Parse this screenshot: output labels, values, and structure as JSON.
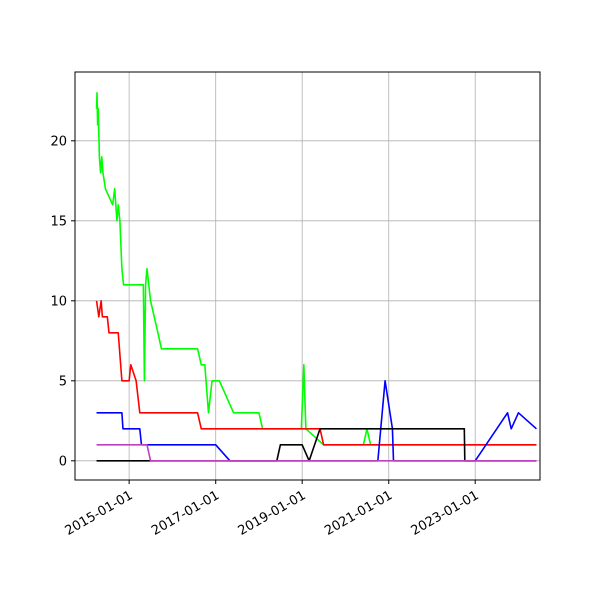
{
  "chart_data": {
    "type": "line",
    "title": "",
    "xlabel": "",
    "ylabel": "",
    "x_axis_type": "date",
    "xlim": [
      "2013-10-01",
      "2024-07-01"
    ],
    "ylim": [
      -1.2,
      24.3
    ],
    "grid": true,
    "legend": "none",
    "x_ticks": [
      "2015-01-01",
      "2017-01-01",
      "2019-01-01",
      "2021-01-01",
      "2023-01-01"
    ],
    "y_ticks": [
      0,
      5,
      10,
      15,
      20
    ],
    "series": [
      {
        "color": "#00ff00",
        "points": [
          [
            "2014-04-01",
            22
          ],
          [
            "2014-04-05",
            23
          ],
          [
            "2014-04-10",
            21
          ],
          [
            "2014-04-15",
            22
          ],
          [
            "2014-04-25",
            19
          ],
          [
            "2014-05-05",
            18
          ],
          [
            "2014-05-15",
            19
          ],
          [
            "2014-05-25",
            18
          ],
          [
            "2014-06-15",
            17
          ],
          [
            "2014-08-15",
            16
          ],
          [
            "2014-09-01",
            17
          ],
          [
            "2014-09-20",
            15
          ],
          [
            "2014-10-01",
            16
          ],
          [
            "2014-10-15",
            15
          ],
          [
            "2014-11-01",
            12
          ],
          [
            "2014-11-15",
            11
          ],
          [
            "2015-02-01",
            11
          ],
          [
            "2015-05-01",
            11
          ],
          [
            "2015-05-10",
            5
          ],
          [
            "2015-05-20",
            11
          ],
          [
            "2015-06-01",
            12
          ],
          [
            "2015-07-01",
            10
          ],
          [
            "2015-08-01",
            9
          ],
          [
            "2015-09-01",
            8
          ],
          [
            "2015-10-01",
            7
          ],
          [
            "2016-08-01",
            7
          ],
          [
            "2016-09-01",
            6
          ],
          [
            "2016-10-01",
            6
          ],
          [
            "2016-11-01",
            3
          ],
          [
            "2016-12-01",
            5
          ],
          [
            "2017-02-01",
            5
          ],
          [
            "2017-06-01",
            3
          ],
          [
            "2018-01-01",
            3
          ],
          [
            "2018-02-01",
            2
          ],
          [
            "2018-12-25",
            2
          ],
          [
            "2019-01-15",
            6
          ],
          [
            "2019-02-01",
            2
          ],
          [
            "2019-07-01",
            1
          ],
          [
            "2020-06-01",
            1
          ],
          [
            "2020-07-01",
            2
          ],
          [
            "2020-08-01",
            1
          ],
          [
            "2024-06-01",
            1
          ]
        ]
      },
      {
        "color": "#ff0000",
        "points": [
          [
            "2014-04-01",
            10
          ],
          [
            "2014-04-20",
            9
          ],
          [
            "2014-05-10",
            10
          ],
          [
            "2014-05-20",
            9
          ],
          [
            "2014-07-01",
            9
          ],
          [
            "2014-07-15",
            8
          ],
          [
            "2014-10-01",
            8
          ],
          [
            "2014-11-01",
            5
          ],
          [
            "2015-01-01",
            5
          ],
          [
            "2015-01-15",
            6
          ],
          [
            "2015-03-01",
            5
          ],
          [
            "2015-04-01",
            3
          ],
          [
            "2016-08-01",
            3
          ],
          [
            "2016-09-01",
            2
          ],
          [
            "2019-06-01",
            2
          ],
          [
            "2019-07-01",
            1
          ],
          [
            "2024-06-01",
            1
          ]
        ]
      },
      {
        "color": "#0000ff",
        "points": [
          [
            "2014-04-01",
            3
          ],
          [
            "2014-11-01",
            3
          ],
          [
            "2014-11-10",
            2
          ],
          [
            "2015-04-01",
            2
          ],
          [
            "2015-04-15",
            1
          ],
          [
            "2016-03-01",
            1
          ],
          [
            "2016-08-01",
            1
          ],
          [
            "2017-01-01",
            1
          ],
          [
            "2017-05-01",
            0
          ],
          [
            "2020-10-01",
            0
          ],
          [
            "2020-12-01",
            5
          ],
          [
            "2021-02-01",
            2
          ],
          [
            "2021-02-10",
            0
          ],
          [
            "2023-01-01",
            0
          ],
          [
            "2023-10-01",
            3
          ],
          [
            "2023-11-01",
            2
          ],
          [
            "2024-01-01",
            3
          ],
          [
            "2024-06-01",
            2
          ]
        ]
      },
      {
        "color": "#000000",
        "points": [
          [
            "2014-04-01",
            0
          ],
          [
            "2018-06-01",
            0
          ],
          [
            "2018-07-01",
            1
          ],
          [
            "2019-01-01",
            1
          ],
          [
            "2019-03-01",
            0
          ],
          [
            "2019-06-01",
            2
          ],
          [
            "2022-10-01",
            2
          ],
          [
            "2022-10-05",
            0
          ],
          [
            "2024-06-01",
            0
          ]
        ]
      },
      {
        "color": "#bf40bf",
        "points": [
          [
            "2014-04-01",
            1
          ],
          [
            "2015-06-01",
            1
          ],
          [
            "2015-07-01",
            0
          ],
          [
            "2024-06-01",
            0
          ]
        ]
      }
    ]
  }
}
